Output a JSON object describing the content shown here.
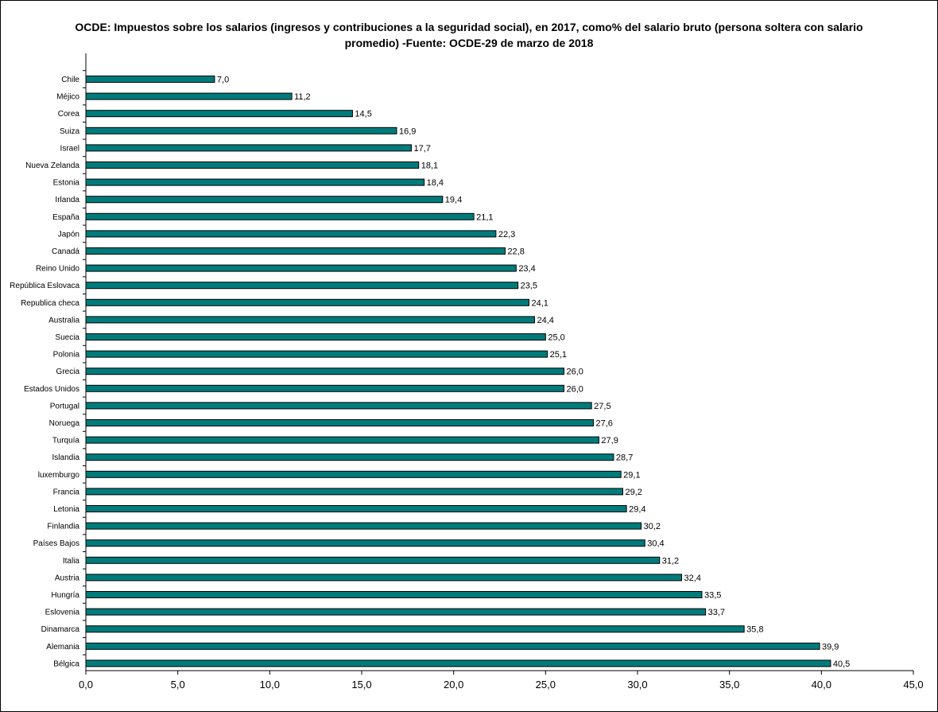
{
  "chart_data": {
    "type": "bar",
    "orientation": "horizontal",
    "title": "OCDE: Impuestos sobre los salarios (ingresos y contribuciones a la seguridad social), en 2017, como% del salario bruto (persona soltera con salario promedio) -Fuente: OCDE-29 de marzo de 2018",
    "categories": [
      "Chile",
      "Méjico",
      "Corea",
      "Suiza",
      "Israel",
      "Nueva Zelanda",
      "Estonia",
      "Irlanda",
      "España",
      "Japón",
      "Canadá",
      "Reino Unido",
      "República Eslovaca",
      "Republica checa",
      "Australia",
      "Suecia",
      "Polonia",
      "Grecia",
      "Estados Unidos",
      "Portugal",
      "Noruega",
      "Turquía",
      "Islandia",
      "luxemburgo",
      "Francia",
      "Letonia",
      "Finlandia",
      "Países Bajos",
      "Italia",
      "Austria",
      "Hungría",
      "Eslovenia",
      "Dinamarca",
      "Alemania",
      "Bélgica"
    ],
    "values": [
      7.0,
      11.2,
      14.5,
      16.9,
      17.7,
      18.1,
      18.4,
      19.4,
      21.1,
      22.3,
      22.8,
      23.4,
      23.5,
      24.1,
      24.4,
      25.0,
      25.1,
      26.0,
      26.0,
      27.5,
      27.6,
      27.9,
      28.7,
      29.1,
      29.2,
      29.4,
      30.2,
      30.4,
      31.2,
      32.4,
      33.5,
      33.7,
      35.8,
      39.9,
      40.5
    ],
    "value_labels": [
      "7,0",
      "11,2",
      "14,5",
      "16,9",
      "17,7",
      "18,1",
      "18,4",
      "19,4",
      "21,1",
      "22,3",
      "22,8",
      "23,4",
      "23,5",
      "24,1",
      "24,4",
      "25,0",
      "25,1",
      "26,0",
      "26,0",
      "27,5",
      "27,6",
      "27,9",
      "28,7",
      "29,1",
      "29,2",
      "29,4",
      "30,2",
      "30,4",
      "31,2",
      "32,4",
      "33,5",
      "33,7",
      "35,8",
      "39,9",
      "40,5"
    ],
    "xlim": [
      0,
      45
    ],
    "x_ticks": [
      0,
      5,
      10,
      15,
      20,
      25,
      30,
      35,
      40,
      45
    ],
    "x_tick_labels": [
      "0,0",
      "5,0",
      "10,0",
      "15,0",
      "20,0",
      "25,0",
      "30,0",
      "35,0",
      "40,0",
      "45,0"
    ],
    "xlabel": "",
    "ylabel": "",
    "grid": false,
    "legend": "none",
    "bar_color": "#007b7b",
    "bar_edge_color": "#000000"
  }
}
